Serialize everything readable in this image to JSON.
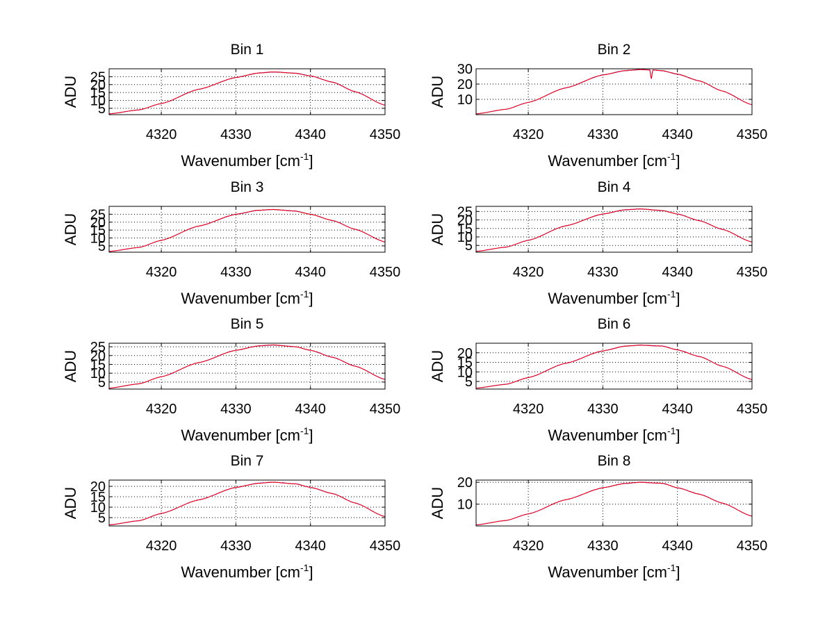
{
  "chart_data": [
    {
      "type": "line",
      "title": "Bin 1",
      "xlabel_main": "Wavenumber [cm",
      "xlabel_sup": "-1",
      "xlabel_end": "]",
      "ylabel": "ADU",
      "xlim": [
        4313,
        4350
      ],
      "ylim": [
        1,
        30
      ],
      "xticks": [
        4320,
        4330,
        4340,
        4350
      ],
      "yticks": [
        5,
        10,
        15,
        20,
        25
      ],
      "grid": true,
      "series": [
        {
          "x": [
            4313,
            4317,
            4320,
            4325,
            4330,
            4333,
            4335,
            4338,
            4340,
            4343,
            4346,
            4350
          ],
          "values": [
            1.5,
            4.0,
            8.0,
            17.0,
            24.5,
            27.3,
            28.0,
            27.2,
            25.5,
            21.5,
            15.5,
            7.0
          ]
        }
      ]
    },
    {
      "type": "line",
      "title": "Bin 2",
      "xlabel_main": "Wavenumber [cm",
      "xlabel_sup": "-1",
      "xlabel_end": "]",
      "ylabel": "ADU",
      "xlim": [
        4313,
        4350
      ],
      "ylim": [
        0,
        30
      ],
      "xticks": [
        4320,
        4330,
        4340,
        4350
      ],
      "yticks": [
        10,
        20,
        30
      ],
      "grid": true,
      "series": [
        {
          "x": [
            4313,
            4317,
            4320,
            4325,
            4330,
            4333,
            4335,
            4336.3,
            4336.5,
            4336.7,
            4338,
            4340,
            4343,
            4346,
            4350
          ],
          "values": [
            0.5,
            3.5,
            8.0,
            17.5,
            26.0,
            28.8,
            29.5,
            29.3,
            23.5,
            29.2,
            28.7,
            26.5,
            22.0,
            15.5,
            6.5
          ]
        }
      ]
    },
    {
      "type": "line",
      "title": "Bin 3",
      "xlabel_main": "Wavenumber [cm",
      "xlabel_sup": "-1",
      "xlabel_end": "]",
      "ylabel": "ADU",
      "xlim": [
        4313,
        4350
      ],
      "ylim": [
        1,
        30
      ],
      "xticks": [
        4320,
        4330,
        4340,
        4350
      ],
      "yticks": [
        5,
        10,
        15,
        20,
        25
      ],
      "grid": true,
      "series": [
        {
          "x": [
            4313,
            4317,
            4320,
            4325,
            4330,
            4333,
            4335,
            4338,
            4340,
            4343,
            4346,
            4350
          ],
          "values": [
            1.5,
            4.0,
            8.5,
            17.5,
            25.0,
            27.5,
            28.0,
            27.0,
            25.0,
            21.0,
            15.5,
            7.5
          ]
        }
      ]
    },
    {
      "type": "line",
      "title": "Bin 4",
      "xlabel_main": "Wavenumber [cm",
      "xlabel_sup": "-1",
      "xlabel_end": "]",
      "ylabel": "ADU",
      "xlim": [
        4313,
        4350
      ],
      "ylim": [
        1,
        28
      ],
      "xticks": [
        4320,
        4330,
        4340,
        4350
      ],
      "yticks": [
        5,
        10,
        15,
        20,
        25
      ],
      "grid": true,
      "series": [
        {
          "x": [
            4313,
            4317,
            4320,
            4325,
            4330,
            4333,
            4335,
            4338,
            4340,
            4343,
            4346,
            4350
          ],
          "values": [
            1.5,
            4.0,
            8.0,
            16.5,
            23.5,
            26.0,
            26.5,
            25.5,
            23.5,
            19.5,
            14.5,
            7.0
          ]
        }
      ]
    },
    {
      "type": "line",
      "title": "Bin 5",
      "xlabel_main": "Wavenumber [cm",
      "xlabel_sup": "-1",
      "xlabel_end": "]",
      "ylabel": "ADU",
      "xlim": [
        4313,
        4350
      ],
      "ylim": [
        1,
        27
      ],
      "xticks": [
        4320,
        4330,
        4340,
        4350
      ],
      "yticks": [
        5,
        10,
        15,
        20,
        25
      ],
      "grid": true,
      "series": [
        {
          "x": [
            4313,
            4317,
            4320,
            4325,
            4330,
            4333,
            4335,
            4338,
            4340,
            4343,
            4346,
            4350
          ],
          "values": [
            1.5,
            4.0,
            8.0,
            16.0,
            23.0,
            25.5,
            26.0,
            25.0,
            23.0,
            19.0,
            14.0,
            6.5
          ]
        }
      ]
    },
    {
      "type": "line",
      "title": "Bin 6",
      "xlabel_main": "Wavenumber [cm",
      "xlabel_sup": "-1",
      "xlabel_end": "]",
      "ylabel": "ADU",
      "xlim": [
        4313,
        4350
      ],
      "ylim": [
        1,
        25
      ],
      "xticks": [
        4320,
        4330,
        4340,
        4350
      ],
      "yticks": [
        5,
        10,
        15,
        20
      ],
      "grid": true,
      "series": [
        {
          "x": [
            4313,
            4317,
            4320,
            4325,
            4330,
            4333,
            4335,
            4338,
            4340,
            4343,
            4346,
            4350
          ],
          "values": [
            1.5,
            3.5,
            7.0,
            14.5,
            21.0,
            23.5,
            24.0,
            23.5,
            21.5,
            18.0,
            13.0,
            6.0
          ]
        }
      ]
    },
    {
      "type": "line",
      "title": "Bin 7",
      "xlabel_main": "Wavenumber [cm",
      "xlabel_sup": "-1",
      "xlabel_end": "]",
      "ylabel": "ADU",
      "xlim": [
        4313,
        4350
      ],
      "ylim": [
        1,
        23
      ],
      "xticks": [
        4320,
        4330,
        4340,
        4350
      ],
      "yticks": [
        5,
        10,
        15,
        20
      ],
      "grid": true,
      "series": [
        {
          "x": [
            4313,
            4317,
            4320,
            4325,
            4330,
            4333,
            4335,
            4338,
            4340,
            4343,
            4346,
            4350
          ],
          "values": [
            1.5,
            3.5,
            7.0,
            13.5,
            19.5,
            21.5,
            22.0,
            21.2,
            19.5,
            16.5,
            12.0,
            5.5
          ]
        }
      ]
    },
    {
      "type": "line",
      "title": "Bin 8",
      "xlabel_main": "Wavenumber [cm",
      "xlabel_sup": "-1",
      "xlabel_end": "]",
      "ylabel": "ADU",
      "xlim": [
        4313,
        4350
      ],
      "ylim": [
        0,
        21
      ],
      "xticks": [
        4320,
        4330,
        4340,
        4350
      ],
      "yticks": [
        10,
        20
      ],
      "grid": true,
      "series": [
        {
          "x": [
            4313,
            4317,
            4320,
            4325,
            4330,
            4333,
            4335,
            4338,
            4340,
            4343,
            4346,
            4350
          ],
          "values": [
            0.5,
            2.5,
            5.5,
            12.0,
            17.5,
            19.5,
            20.0,
            19.5,
            17.5,
            14.5,
            10.5,
            4.5
          ]
        }
      ]
    }
  ],
  "colors": {
    "line_primary": "#ff0000",
    "line_secondary": "#0000ff",
    "grid": "#000000",
    "axes": "#000000"
  }
}
